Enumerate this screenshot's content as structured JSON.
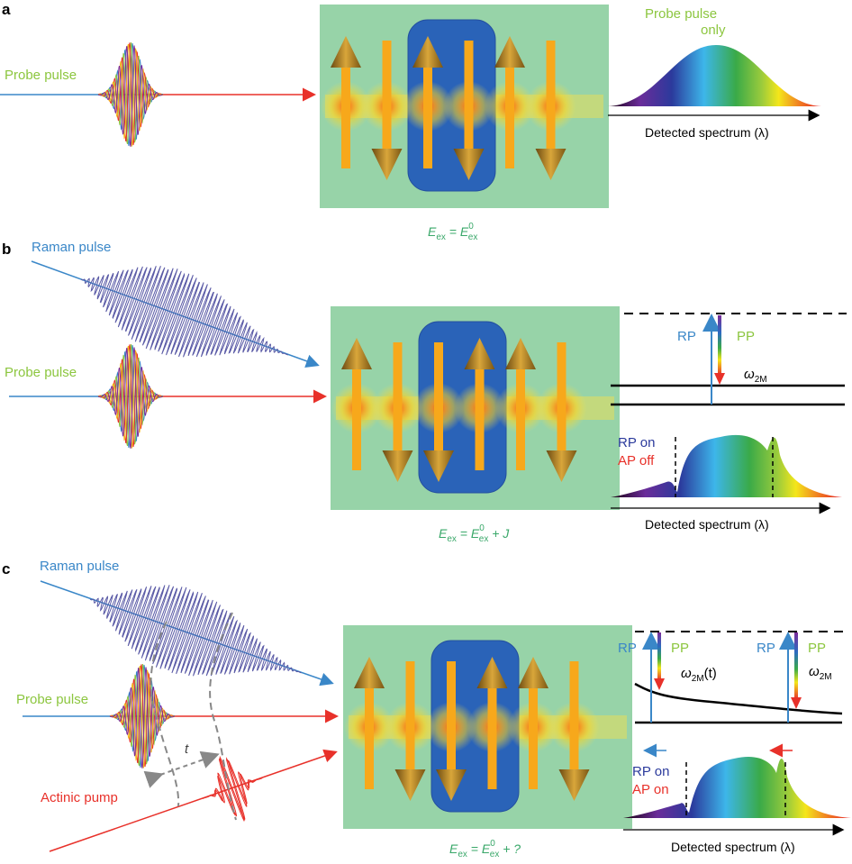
{
  "panels": {
    "a": {
      "letter": "a",
      "probe_label": "Probe pulse",
      "spectrum_label_1": "Probe pulse",
      "spectrum_label_2": "only",
      "axis_label": "Detected spectrum (λ)",
      "equation": {
        "E": "E",
        "ex": "ex",
        "eq": " = ",
        "E2": "E",
        "sup": "0",
        "sub2": "ex",
        "tail": ""
      }
    },
    "b": {
      "letter": "b",
      "raman_label": "Raman pulse",
      "probe_label": "Probe pulse",
      "rp": "RP",
      "pp": "PP",
      "omega": "ω",
      "omega_sub": "2M",
      "rp_on": "RP on",
      "ap_off": "AP off",
      "axis_label": "Detected spectrum (λ)",
      "equation": {
        "E": "E",
        "ex": "ex",
        "eq": " = ",
        "E2": "E",
        "sup": "0",
        "sub2": "ex",
        "tail": " + J"
      }
    },
    "c": {
      "letter": "c",
      "raman_label": "Raman pulse",
      "probe_label": "Probe pulse",
      "pump_label": "Actinic pump",
      "delay_label": "t",
      "rp": "RP",
      "pp": "PP",
      "omega": "ω",
      "omega_sub": "2M",
      "omega_t": "(t)",
      "rp_on": "RP on",
      "ap_on": "AP on",
      "axis_label": "Detected spectrum (λ)",
      "equation": {
        "E": "E",
        "ex": "ex",
        "eq": " = ",
        "E2": "E",
        "sup": "0",
        "sub2": "ex",
        "tail": " + ?"
      }
    }
  },
  "colors": {
    "sample_bg": "#97d3a8",
    "chain_region": "#2a63b8",
    "spin": "#f7a81b",
    "probe_text": "#8cc63f",
    "raman_text": "#3a87c8",
    "pump_text": "#e8312a",
    "equation": "#3aa86a"
  }
}
